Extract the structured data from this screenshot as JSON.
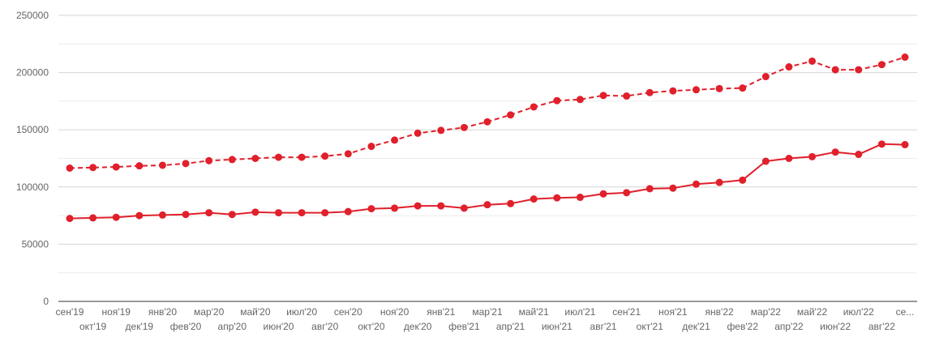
{
  "chart_data": {
    "type": "line",
    "title": "",
    "xlabel": "",
    "ylabel": "",
    "ylim": [
      0,
      250000
    ],
    "yticks": [
      0,
      50000,
      100000,
      150000,
      200000,
      250000
    ],
    "grid": true,
    "categories": [
      "сен'19",
      "окт'19",
      "ноя'19",
      "дек'19",
      "янв'20",
      "фев'20",
      "мар'20",
      "апр'20",
      "май'20",
      "июн'20",
      "июл'20",
      "авг'20",
      "сен'20",
      "окт'20",
      "ноя'20",
      "дек'20",
      "янв'21",
      "фев'21",
      "мар'21",
      "апр'21",
      "май'21",
      "июн'21",
      "июл'21",
      "авг'21",
      "сен'21",
      "окт'21",
      "ноя'21",
      "дек'21",
      "янв'22",
      "фев'22",
      "мар'22",
      "апр'22",
      "май'22",
      "июн'22",
      "июл'22",
      "авг'22",
      "се..."
    ],
    "series": [
      {
        "style": "dashed",
        "color": "#e0202b",
        "values": [
          116500,
          117000,
          117500,
          118500,
          119000,
          120500,
          123000,
          124000,
          125000,
          126000,
          126000,
          127000,
          129000,
          135500,
          141000,
          147000,
          149500,
          152000,
          157000,
          163000,
          170000,
          175500,
          176500,
          180000,
          179500,
          182500,
          184000,
          185000,
          186000,
          186500,
          196500,
          205000,
          210000,
          202500,
          202500,
          207000,
          213500
        ]
      },
      {
        "style": "solid",
        "color": "#e0202b",
        "values": [
          72500,
          73000,
          73500,
          75000,
          75500,
          76000,
          77500,
          76000,
          78000,
          77500,
          77500,
          77500,
          78500,
          81000,
          81500,
          83500,
          83500,
          81500,
          84500,
          85500,
          89500,
          90500,
          91000,
          94000,
          95000,
          98500,
          99000,
          102500,
          104000,
          106000,
          122500,
          125000,
          126500,
          130500,
          128500,
          137500,
          137000
        ]
      }
    ]
  }
}
